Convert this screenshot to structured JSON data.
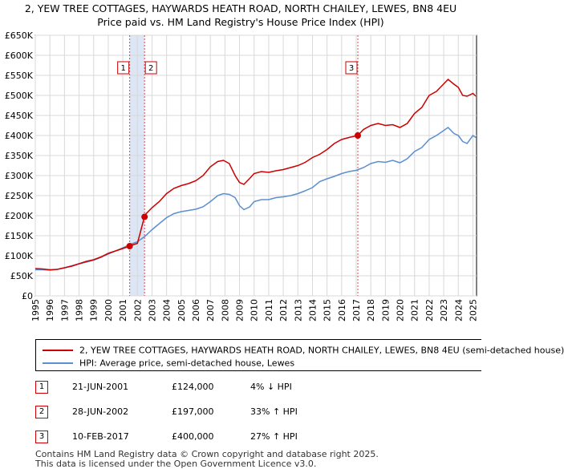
{
  "title": {
    "line1": "2, YEW TREE COTTAGES, HAYWARDS HEATH ROAD, NORTH CHAILEY, LEWES, BN8 4EU",
    "line2": "Price paid vs. HM Land Registry's House Price Index (HPI)"
  },
  "colors": {
    "property": "#cc0000",
    "hpi": "#5b8fcf",
    "span_fill": "#dce6f5",
    "grid": "#d8d8d8"
  },
  "chart_data": {
    "type": "line",
    "title": "Price paid vs. HM Land Registry's House Price Index (HPI)",
    "xlabel": "",
    "ylabel": "",
    "xlim": [
      1995.0,
      2025.25
    ],
    "ylim": [
      0,
      650000
    ],
    "y_ticks": [
      {
        "value": 0,
        "label": "£0"
      },
      {
        "value": 50000,
        "label": "£50K"
      },
      {
        "value": 100000,
        "label": "£100K"
      },
      {
        "value": 150000,
        "label": "£150K"
      },
      {
        "value": 200000,
        "label": "£200K"
      },
      {
        "value": 250000,
        "label": "£250K"
      },
      {
        "value": 300000,
        "label": "£300K"
      },
      {
        "value": 350000,
        "label": "£350K"
      },
      {
        "value": 400000,
        "label": "£400K"
      },
      {
        "value": 450000,
        "label": "£450K"
      },
      {
        "value": 500000,
        "label": "£500K"
      },
      {
        "value": 550000,
        "label": "£550K"
      },
      {
        "value": 600000,
        "label": "£600K"
      },
      {
        "value": 650000,
        "label": "£650K"
      }
    ],
    "x_ticks": [
      "1995",
      "1996",
      "1997",
      "1998",
      "1999",
      "2000",
      "2001",
      "2002",
      "2003",
      "2004",
      "2005",
      "2006",
      "2007",
      "2008",
      "2009",
      "2010",
      "2011",
      "2012",
      "2013",
      "2014",
      "2015",
      "2016",
      "2017",
      "2018",
      "2019",
      "2020",
      "2021",
      "2022",
      "2023",
      "2024",
      "2025"
    ],
    "grid": true,
    "series": [
      {
        "name": "2, YEW TREE COTTAGES, HAYWARDS HEATH ROAD, NORTH CHAILEY, LEWES, BN8 4EU (semi-detached house)",
        "color": "#cc0000",
        "x": [
          1995.0,
          1995.5,
          1996.0,
          1996.5,
          1997.0,
          1997.5,
          1998.0,
          1998.5,
          1999.0,
          1999.5,
          2000.0,
          2000.5,
          2001.0,
          2001.47,
          2001.6,
          2002.0,
          2002.48,
          2002.6,
          2003.0,
          2003.5,
          2004.0,
          2004.5,
          2005.0,
          2005.5,
          2006.0,
          2006.5,
          2007.0,
          2007.5,
          2007.9,
          2008.3,
          2008.7,
          2009.0,
          2009.3,
          2009.7,
          2010.0,
          2010.5,
          2011.0,
          2011.5,
          2012.0,
          2012.5,
          2013.0,
          2013.5,
          2014.0,
          2014.5,
          2015.0,
          2015.5,
          2016.0,
          2016.5,
          2017.11,
          2017.5,
          2018.0,
          2018.5,
          2019.0,
          2019.5,
          2020.0,
          2020.5,
          2021.0,
          2021.5,
          2022.0,
          2022.5,
          2022.9,
          2023.3,
          2023.7,
          2024.0,
          2024.3,
          2024.6,
          2025.0,
          2025.2
        ],
        "values": [
          68000,
          67000,
          65000,
          66000,
          70000,
          74000,
          80000,
          86000,
          90000,
          97000,
          106000,
          112000,
          118000,
          124000,
          126000,
          131000,
          197000,
          205000,
          220000,
          235000,
          255000,
          268000,
          275000,
          280000,
          287000,
          300000,
          322000,
          335000,
          338000,
          330000,
          300000,
          283000,
          278000,
          293000,
          305000,
          310000,
          308000,
          312000,
          315000,
          320000,
          325000,
          333000,
          345000,
          353000,
          365000,
          380000,
          390000,
          395000,
          400000,
          415000,
          425000,
          430000,
          425000,
          427000,
          420000,
          430000,
          455000,
          470000,
          500000,
          510000,
          525000,
          540000,
          528000,
          520000,
          500000,
          498000,
          505000,
          498000
        ]
      },
      {
        "name": "HPI: Average price, semi-detached house, Lewes",
        "color": "#5b8fcf",
        "x": [
          1995.0,
          1995.5,
          1996.0,
          1996.5,
          1997.0,
          1997.5,
          1998.0,
          1998.5,
          1999.0,
          1999.5,
          2000.0,
          2000.5,
          2001.0,
          2001.5,
          2002.0,
          2002.5,
          2003.0,
          2003.5,
          2004.0,
          2004.5,
          2005.0,
          2005.5,
          2006.0,
          2006.5,
          2007.0,
          2007.5,
          2007.9,
          2008.3,
          2008.7,
          2009.0,
          2009.3,
          2009.7,
          2010.0,
          2010.5,
          2011.0,
          2011.5,
          2012.0,
          2012.5,
          2013.0,
          2013.5,
          2014.0,
          2014.5,
          2015.0,
          2015.5,
          2016.0,
          2016.5,
          2017.0,
          2017.5,
          2018.0,
          2018.5,
          2019.0,
          2019.5,
          2020.0,
          2020.5,
          2021.0,
          2021.5,
          2022.0,
          2022.5,
          2022.9,
          2023.3,
          2023.7,
          2024.0,
          2024.3,
          2024.6,
          2025.0,
          2025.2
        ],
        "values": [
          65000,
          65000,
          64000,
          66000,
          70000,
          75000,
          80000,
          84000,
          89000,
          96000,
          104000,
          112000,
          120000,
          128000,
          135000,
          148000,
          165000,
          180000,
          195000,
          205000,
          210000,
          213000,
          216000,
          222000,
          235000,
          250000,
          255000,
          253000,
          245000,
          225000,
          215000,
          222000,
          235000,
          240000,
          240000,
          245000,
          247000,
          250000,
          255000,
          262000,
          270000,
          285000,
          292000,
          298000,
          305000,
          310000,
          313000,
          320000,
          330000,
          335000,
          333000,
          338000,
          332000,
          342000,
          360000,
          370000,
          390000,
          400000,
          410000,
          420000,
          405000,
          400000,
          385000,
          380000,
          400000,
          395000
        ]
      }
    ],
    "sales": [
      {
        "id": "1",
        "x": 2001.47,
        "value": 124000,
        "date": "21-JUN-2001",
        "price": "£124,000",
        "hpi_text": "4% ↓ HPI"
      },
      {
        "id": "2",
        "x": 2002.49,
        "value": 197000,
        "date": "28-JUN-2002",
        "price": "£197,000",
        "hpi_text": "33% ↑ HPI"
      },
      {
        "id": "3",
        "x": 2017.11,
        "value": 400000,
        "date": "10-FEB-2017",
        "price": "£400,000",
        "hpi_text": "27% ↑ HPI"
      }
    ]
  },
  "legend": {
    "property_label": "2, YEW TREE COTTAGES, HAYWARDS HEATH ROAD, NORTH CHAILEY, LEWES, BN8 4EU (semi-detached house)",
    "hpi_label": "HPI: Average price, semi-detached house, Lewes"
  },
  "footer": {
    "line1": "Contains HM Land Registry data © Crown copyright and database right 2025.",
    "line2": "This data is licensed under the Open Government Licence v3.0."
  }
}
